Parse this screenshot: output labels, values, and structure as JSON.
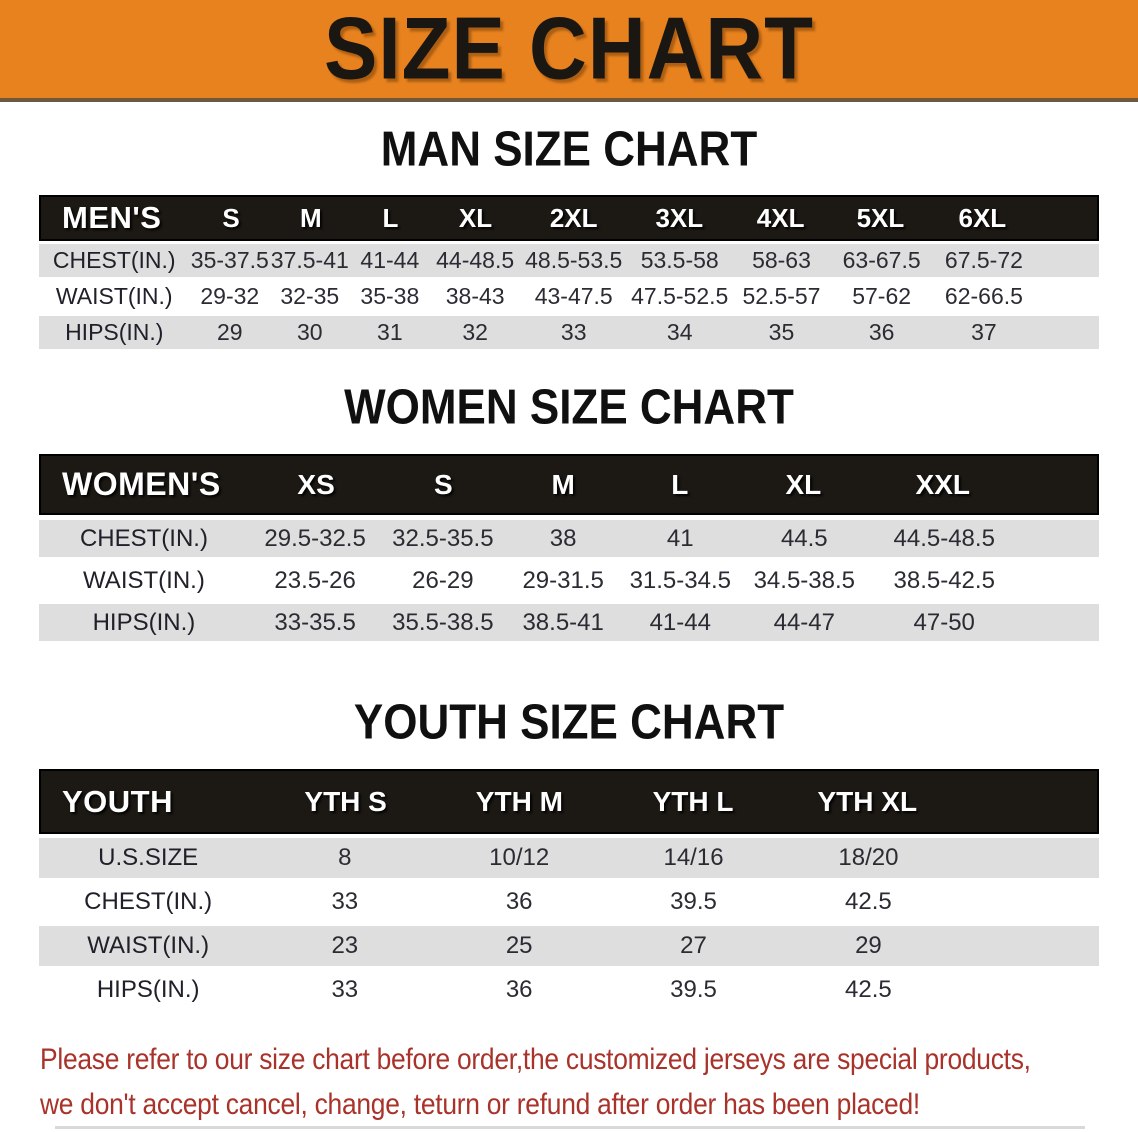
{
  "banner": {
    "title": "SIZE CHART"
  },
  "sections": [
    {
      "heading": "MAN SIZE CHART",
      "table": {
        "corner": "MEN'S",
        "sizes": [
          "S",
          "M",
          "L",
          "XL",
          "2XL",
          "3XL",
          "4XL",
          "5XL",
          "6XL"
        ],
        "rows": [
          {
            "label": "CHEST(IN.)",
            "values": [
              "35-37.5",
              "37.5-41",
              "41-44",
              "44-48.5",
              "48.5-53.5",
              "53.5-58",
              "58-63",
              "63-67.5",
              "67.5-72"
            ]
          },
          {
            "label": "WAIST(IN.)",
            "values": [
              "29-32",
              "32-35",
              "35-38",
              "38-43",
              "43-47.5",
              "47.5-52.5",
              "52.5-57",
              "57-62",
              "62-66.5"
            ]
          },
          {
            "label": "HIPS(IN.)",
            "values": [
              "29",
              "30",
              "31",
              "32",
              "33",
              "34",
              "35",
              "36",
              "37"
            ]
          }
        ]
      }
    },
    {
      "heading": "WOMEN SIZE CHART",
      "table": {
        "corner": "WOMEN'S",
        "sizes": [
          "XS",
          "S",
          "M",
          "L",
          "XL",
          "XXL"
        ],
        "rows": [
          {
            "label": "CHEST(IN.)",
            "values": [
              "29.5-32.5",
              "32.5-35.5",
              "38",
              "41",
              "44.5",
              "44.5-48.5"
            ]
          },
          {
            "label": "WAIST(IN.)",
            "values": [
              "23.5-26",
              "26-29",
              "29-31.5",
              "31.5-34.5",
              "34.5-38.5",
              "38.5-42.5"
            ]
          },
          {
            "label": "HIPS(IN.)",
            "values": [
              "33-35.5",
              "35.5-38.5",
              "38.5-41",
              "41-44",
              "44-47",
              "47-50"
            ]
          }
        ]
      }
    },
    {
      "heading": "YOUTH SIZE CHART",
      "table": {
        "corner": "YOUTH",
        "sizes": [
          "YTH S",
          "YTH M",
          "YTH L",
          "YTH XL"
        ],
        "rows": [
          {
            "label": "U.S.SIZE",
            "values": [
              "8",
              "10/12",
              "14/16",
              "18/20"
            ]
          },
          {
            "label": "CHEST(IN.)",
            "values": [
              "33",
              "36",
              "39.5",
              "42.5"
            ]
          },
          {
            "label": "WAIST(IN.)",
            "values": [
              "23",
              "25",
              "27",
              "29"
            ]
          },
          {
            "label": "HIPS(IN.)",
            "values": [
              "33",
              "36",
              "39.5",
              "42.5"
            ]
          }
        ]
      }
    }
  ],
  "footer": {
    "line1": "Please refer to our size chart before order,the customized jerseys are special products,",
    "line2": "we don't accept cancel, change, teturn or refund after order has been placed!"
  },
  "colors": {
    "banner_orange": "#E8821E",
    "header_bar_black": "#1C1814",
    "row_gray": "#DEDEDE",
    "disclaimer_red": "#A9332A"
  }
}
